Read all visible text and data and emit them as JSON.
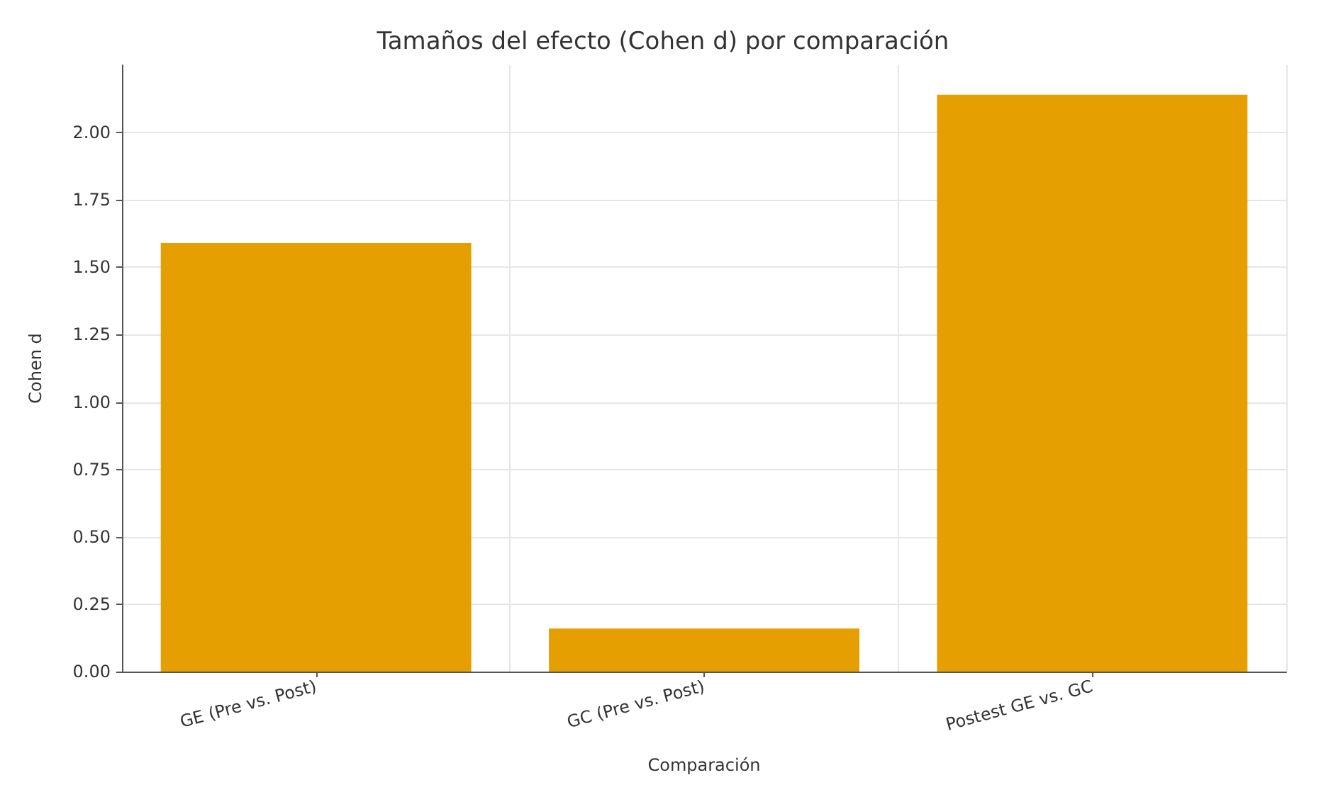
{
  "chart_data": {
    "type": "bar",
    "title": "Tamaños del efecto (Cohen d) por comparación",
    "xlabel": "Comparación",
    "ylabel": "Cohen d",
    "categories": [
      "GE (Pre vs. Post)",
      "GC (Pre vs. Post)",
      "Postest GE vs. GC"
    ],
    "values": [
      1.59,
      0.16,
      2.14
    ],
    "color": "#e69f00",
    "ylim": [
      0,
      2.25
    ],
    "yticks": [
      {
        "value": 0,
        "label": "0.00"
      },
      {
        "value": 0.25,
        "label": "0.25"
      },
      {
        "value": 0.5,
        "label": "0.50"
      },
      {
        "value": 0.75,
        "label": "0.75"
      },
      {
        "value": 1,
        "label": "1.00"
      },
      {
        "value": 1.25,
        "label": "1.25"
      },
      {
        "value": 1.5,
        "label": "1.50"
      },
      {
        "value": 1.75,
        "label": "1.75"
      },
      {
        "value": 2,
        "label": "2.00"
      }
    ],
    "grid": true
  }
}
